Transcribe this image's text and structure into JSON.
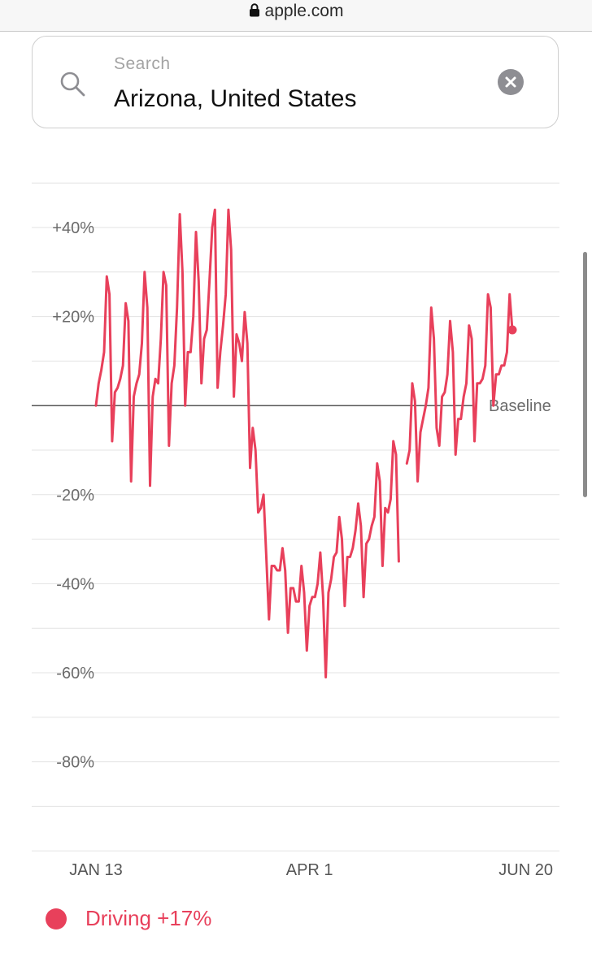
{
  "browser": {
    "url": "apple.com"
  },
  "search": {
    "placeholder": "Search",
    "value": "Arizona, United States"
  },
  "colors": {
    "series": "#e8405b",
    "grid": "#e3e3e3",
    "baseline": "#555555",
    "axis_text": "#6b6b6b"
  },
  "chart_data": {
    "type": "line",
    "title": "",
    "xlabel": "",
    "ylabel": "",
    "baseline_label": "Baseline",
    "y_ticks": [
      {
        "value": 40,
        "label": "+40%"
      },
      {
        "value": 20,
        "label": "+20%"
      },
      {
        "value": -20,
        "label": "-20%"
      },
      {
        "value": -40,
        "label": "-40%"
      },
      {
        "value": -60,
        "label": "-60%"
      },
      {
        "value": -80,
        "label": "-80%"
      }
    ],
    "x_ticks": [
      {
        "day": 0,
        "label": "JAN 13"
      },
      {
        "day": 79,
        "label": "APR 1"
      },
      {
        "day": 159,
        "label": "JUN 20"
      }
    ],
    "x_range": [
      "2020-01-13",
      "2020-06-20"
    ],
    "ylim": [
      -100,
      50
    ],
    "grid": true,
    "series": [
      {
        "name": "Driving",
        "change_label": "+17%",
        "segments": [
          [
            [
              0,
              0
            ],
            [
              1,
              5
            ],
            [
              2,
              8
            ],
            [
              3,
              12
            ],
            [
              4,
              29
            ],
            [
              5,
              25
            ],
            [
              6,
              -8
            ],
            [
              7,
              3
            ],
            [
              8,
              4
            ],
            [
              9,
              6
            ],
            [
              10,
              9
            ],
            [
              11,
              23
            ],
            [
              12,
              19
            ],
            [
              13,
              -17
            ],
            [
              14,
              2
            ],
            [
              15,
              5
            ],
            [
              16,
              7
            ],
            [
              17,
              14
            ],
            [
              18,
              30
            ],
            [
              19,
              22
            ],
            [
              20,
              -18
            ],
            [
              21,
              2
            ],
            [
              22,
              6
            ],
            [
              23,
              5
            ],
            [
              24,
              15
            ],
            [
              25,
              30
            ],
            [
              26,
              27
            ],
            [
              27,
              -9
            ],
            [
              28,
              5
            ],
            [
              29,
              9
            ],
            [
              30,
              22
            ],
            [
              31,
              43
            ],
            [
              32,
              30
            ],
            [
              33,
              0
            ],
            [
              34,
              12
            ],
            [
              35,
              12
            ],
            [
              36,
              20
            ],
            [
              37,
              39
            ],
            [
              38,
              28
            ],
            [
              39,
              5
            ],
            [
              40,
              15
            ],
            [
              41,
              17
            ],
            [
              42,
              28
            ],
            [
              43,
              40
            ],
            [
              44,
              44
            ],
            [
              45,
              4
            ],
            [
              46,
              12
            ],
            [
              47,
              18
            ],
            [
              48,
              25
            ],
            [
              49,
              44
            ],
            [
              50,
              35
            ],
            [
              51,
              2
            ],
            [
              52,
              16
            ],
            [
              53,
              14
            ],
            [
              54,
              10
            ],
            [
              55,
              21
            ],
            [
              56,
              14
            ],
            [
              57,
              -14
            ],
            [
              58,
              -5
            ],
            [
              59,
              -10
            ],
            [
              60,
              -24
            ],
            [
              61,
              -23
            ],
            [
              62,
              -20
            ],
            [
              63,
              -34
            ],
            [
              64,
              -48
            ],
            [
              65,
              -36
            ],
            [
              66,
              -36
            ],
            [
              67,
              -37
            ],
            [
              68,
              -37
            ],
            [
              69,
              -32
            ],
            [
              70,
              -37
            ],
            [
              71,
              -51
            ],
            [
              72,
              -41
            ],
            [
              73,
              -41
            ],
            [
              74,
              -44
            ],
            [
              75,
              -44
            ],
            [
              76,
              -36
            ],
            [
              77,
              -42
            ],
            [
              78,
              -55
            ],
            [
              79,
              -45
            ],
            [
              80,
              -43
            ],
            [
              81,
              -43
            ],
            [
              82,
              -40
            ],
            [
              83,
              -33
            ],
            [
              84,
              -43
            ],
            [
              85,
              -61
            ],
            [
              86,
              -42
            ],
            [
              87,
              -39
            ],
            [
              88,
              -34
            ],
            [
              89,
              -33
            ],
            [
              90,
              -25
            ],
            [
              91,
              -30
            ],
            [
              92,
              -45
            ],
            [
              93,
              -34
            ],
            [
              94,
              -34
            ],
            [
              95,
              -32
            ],
            [
              96,
              -28
            ],
            [
              97,
              -22
            ],
            [
              98,
              -27
            ],
            [
              99,
              -43
            ],
            [
              100,
              -31
            ],
            [
              101,
              -30
            ],
            [
              102,
              -27
            ],
            [
              103,
              -25
            ],
            [
              104,
              -13
            ],
            [
              105,
              -17
            ],
            [
              106,
              -36
            ],
            [
              107,
              -23
            ],
            [
              108,
              -24
            ],
            [
              109,
              -21
            ],
            [
              110,
              -8
            ],
            [
              111,
              -11
            ],
            [
              112,
              -35
            ]
          ],
          [
            [
              115,
              -13
            ],
            [
              116,
              -10
            ],
            [
              117,
              5
            ],
            [
              118,
              1
            ],
            [
              119,
              -17
            ],
            [
              120,
              -6
            ],
            [
              121,
              -3
            ],
            [
              122,
              0
            ],
            [
              123,
              4
            ],
            [
              124,
              22
            ],
            [
              125,
              15
            ],
            [
              126,
              -5
            ],
            [
              127,
              -9
            ],
            [
              128,
              2
            ],
            [
              129,
              3
            ],
            [
              130,
              7
            ],
            [
              131,
              19
            ],
            [
              132,
              12
            ],
            [
              133,
              -11
            ],
            [
              134,
              -3
            ],
            [
              135,
              -3
            ],
            [
              136,
              2
            ],
            [
              137,
              5
            ],
            [
              138,
              18
            ],
            [
              139,
              15
            ],
            [
              140,
              -8
            ],
            [
              141,
              5
            ],
            [
              142,
              5
            ],
            [
              143,
              6
            ],
            [
              144,
              9
            ],
            [
              145,
              25
            ],
            [
              146,
              22
            ],
            [
              147,
              0
            ],
            [
              148,
              7
            ],
            [
              149,
              7
            ],
            [
              150,
              9
            ],
            [
              151,
              9
            ],
            [
              152,
              12
            ],
            [
              153,
              25
            ],
            [
              154,
              17
            ]
          ]
        ]
      }
    ]
  },
  "legend": {
    "label": "Driving +17%"
  }
}
